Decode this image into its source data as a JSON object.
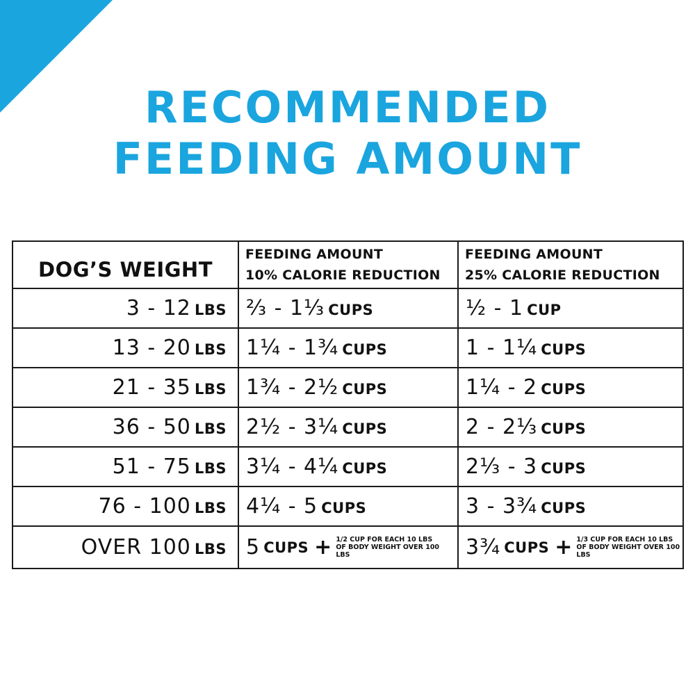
{
  "accent_color": "#1aa5df",
  "title": {
    "line1": "RECOMMENDED",
    "line2": "FEEDING AMOUNT"
  },
  "table": {
    "headers": {
      "weight": "DOG’S WEIGHT",
      "col2_line1": "FEEDING AMOUNT",
      "col2_line2": "10% CALORIE REDUCTION",
      "col3_line1": "FEEDING AMOUNT",
      "col3_line2": "25% CALORIE REDUCTION"
    },
    "rows": [
      {
        "weight": "3 - 12",
        "weight_unit": "LBS",
        "amt10": "⅔ - 1⅓",
        "amt10_unit": "CUPS",
        "amt25": "½ - 1",
        "amt25_unit": "CUP"
      },
      {
        "weight": "13 - 20",
        "weight_unit": "LBS",
        "amt10": "1¼ - 1¾",
        "amt10_unit": "CUPS",
        "amt25": "1 - 1¼",
        "amt25_unit": "CUPS"
      },
      {
        "weight": "21 - 35",
        "weight_unit": "LBS",
        "amt10": "1¾ - 2½",
        "amt10_unit": "CUPS",
        "amt25": "1¼ - 2",
        "amt25_unit": "CUPS"
      },
      {
        "weight": "36 - 50",
        "weight_unit": "LBS",
        "amt10": "2½ - 3¼",
        "amt10_unit": "CUPS",
        "amt25": "2 - 2⅓",
        "amt25_unit": "CUPS"
      },
      {
        "weight": "51 - 75",
        "weight_unit": "LBS",
        "amt10": "3¼ - 4¼",
        "amt10_unit": "CUPS",
        "amt25": "2⅓ - 3",
        "amt25_unit": "CUPS"
      },
      {
        "weight": "76 - 100",
        "weight_unit": "LBS",
        "amt10": "4¼ - 5",
        "amt10_unit": "CUPS",
        "amt25": "3 - 3¾",
        "amt25_unit": "CUPS"
      }
    ],
    "last_row": {
      "weight": "OVER 100",
      "weight_unit": "LBS",
      "amt10": "5",
      "amt10_unit": "CUPS",
      "amt10_note": "1/2 CUP FOR EACH 10 LBS OF BODY WEIGHT OVER 100 LBS",
      "amt25": "3¾",
      "amt25_unit": "CUPS",
      "amt25_note": "1/3 CUP FOR EACH 10 LBS OF BODY WEIGHT OVER 100 LBS",
      "plus": "+"
    }
  }
}
